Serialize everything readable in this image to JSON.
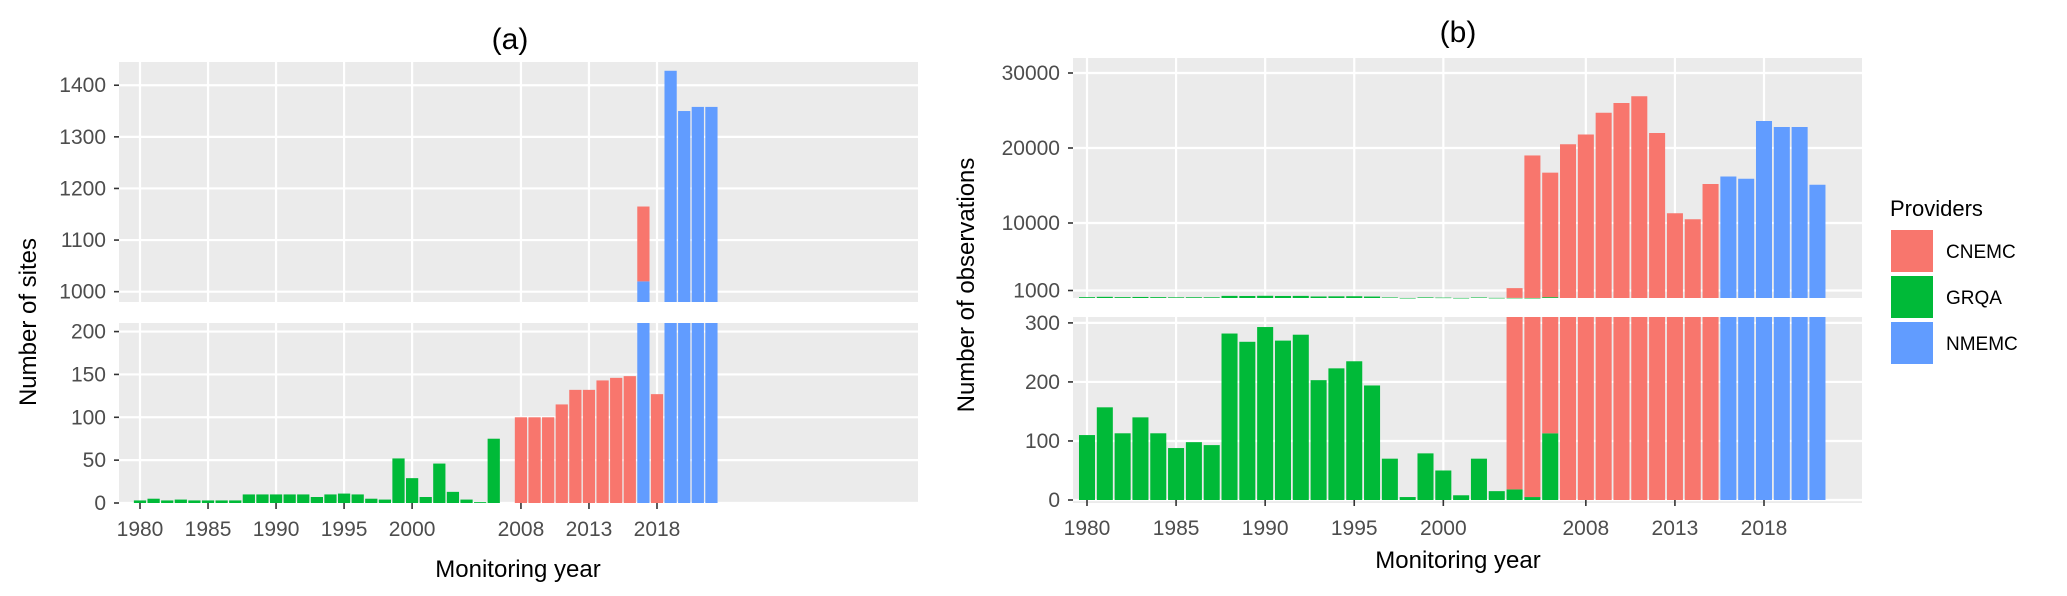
{
  "chart_data": [
    {
      "type": "bar",
      "stacked": true,
      "title": "(a)",
      "xlabel": "Monitoring year",
      "ylabel": "Number of sites",
      "x_ticks": [
        "1980",
        "1985",
        "1990",
        "1995",
        "2000",
        "2008",
        "2013",
        "2018"
      ],
      "y_ticks_upper": [
        "1000",
        "1100",
        "1200",
        "1300",
        "1400"
      ],
      "y_ticks_lower": [
        "0",
        "50",
        "100",
        "150",
        "200"
      ],
      "ylim_upper": [
        980,
        1445
      ],
      "ylim_lower": [
        0,
        210
      ],
      "categories": [
        "1980",
        "1981",
        "1982",
        "1983",
        "1984",
        "1985",
        "1986",
        "1987",
        "1988",
        "1989",
        "1990",
        "1991",
        "1992",
        "1993",
        "1994",
        "1995",
        "1996",
        "1997",
        "1998",
        "1999",
        "2000",
        "2001",
        "2002",
        "2003",
        "2004",
        "2005",
        "2006",
        "2007",
        "2008",
        "2009",
        "2010",
        "2011",
        "2012",
        "2013",
        "2014",
        "2015",
        "2016",
        "2017",
        "2018",
        "2019",
        "2020",
        "2021",
        "2022"
      ],
      "series": [
        {
          "name": "CNEMC",
          "color": "#F8766D",
          "values": [
            0,
            0,
            0,
            0,
            0,
            0,
            0,
            0,
            0,
            0,
            0,
            0,
            0,
            0,
            0,
            0,
            0,
            0,
            0,
            0,
            0,
            0,
            0,
            0,
            0,
            0,
            0,
            0,
            100,
            100,
            100,
            115,
            132,
            132,
            143,
            146,
            148,
            145,
            127,
            0,
            0,
            0,
            0
          ]
        },
        {
          "name": "GRQA",
          "color": "#00BA38",
          "values": [
            3,
            5,
            3,
            4,
            3,
            3,
            3,
            3,
            10,
            10,
            10,
            10,
            10,
            7,
            10,
            11,
            10,
            5,
            4,
            52,
            29,
            7,
            46,
            13,
            4,
            1,
            75,
            0,
            0,
            0,
            0,
            0,
            0,
            0,
            0,
            0,
            0,
            0,
            0,
            0,
            0,
            0,
            0
          ]
        },
        {
          "name": "NMEMC",
          "color": "#619CFF",
          "values": [
            0,
            0,
            0,
            0,
            0,
            0,
            0,
            0,
            0,
            0,
            0,
            0,
            0,
            0,
            0,
            0,
            0,
            0,
            0,
            0,
            0,
            0,
            0,
            0,
            0,
            0,
            0,
            0,
            0,
            0,
            0,
            0,
            0,
            0,
            0,
            0,
            0,
            1020,
            0,
            1428,
            1350,
            1358,
            1358
          ]
        }
      ]
    },
    {
      "type": "bar",
      "stacked": true,
      "title": "(b)",
      "xlabel": "Monitoring year",
      "ylabel": "Number of observations",
      "x_ticks": [
        "1980",
        "1985",
        "1990",
        "1995",
        "2000",
        "2008",
        "2013",
        "2018"
      ],
      "y_ticks_upper": [
        "1000",
        "10000",
        "20000",
        "30000"
      ],
      "y_ticks_lower": [
        "0",
        "100",
        "200",
        "300"
      ],
      "ylim_upper": [
        0,
        32000
      ],
      "ylim_lower": [
        0,
        310
      ],
      "categories": [
        "1980",
        "1981",
        "1982",
        "1983",
        "1984",
        "1985",
        "1986",
        "1987",
        "1988",
        "1989",
        "1990",
        "1991",
        "1992",
        "1993",
        "1994",
        "1995",
        "1996",
        "1997",
        "1998",
        "1999",
        "2000",
        "2001",
        "2002",
        "2003",
        "2004",
        "2005",
        "2006",
        "2007",
        "2008",
        "2009",
        "2010",
        "2011",
        "2012",
        "2013",
        "2014",
        "2015",
        "2016",
        "2017",
        "2018",
        "2019",
        "2020",
        "2021",
        "2022"
      ],
      "series": [
        {
          "name": "CNEMC",
          "color": "#F8766D",
          "values": [
            0,
            0,
            0,
            0,
            0,
            0,
            0,
            0,
            0,
            0,
            0,
            0,
            0,
            0,
            0,
            0,
            0,
            0,
            0,
            0,
            0,
            0,
            0,
            0,
            1300,
            19000,
            16600,
            20500,
            21800,
            24700,
            26000,
            26900,
            22000,
            11300,
            10500,
            15200,
            0,
            0,
            0,
            0,
            0,
            0,
            0
          ]
        },
        {
          "name": "GRQA",
          "color": "#00BA38",
          "values": [
            110,
            157,
            113,
            140,
            113,
            88,
            98,
            93,
            282,
            268,
            293,
            270,
            280,
            203,
            223,
            235,
            194,
            70,
            5,
            79,
            50,
            8,
            70,
            15,
            18,
            5,
            113,
            0,
            0,
            0,
            0,
            0,
            0,
            0,
            0,
            0,
            0,
            0,
            0,
            0,
            0,
            0,
            0
          ]
        },
        {
          "name": "NMEMC",
          "color": "#619CFF",
          "values": [
            0,
            0,
            0,
            0,
            0,
            0,
            0,
            0,
            0,
            0,
            0,
            0,
            0,
            0,
            0,
            0,
            0,
            0,
            0,
            0,
            0,
            0,
            0,
            0,
            0,
            0,
            0,
            0,
            0,
            0,
            0,
            0,
            0,
            0,
            0,
            0,
            16200,
            15900,
            23600,
            22800,
            22800,
            15100,
            0
          ]
        }
      ]
    }
  ],
  "legend": {
    "title": "Providers",
    "entries": [
      {
        "label": "CNEMC",
        "color": "#F8766D"
      },
      {
        "label": "GRQA",
        "color": "#00BA38"
      },
      {
        "label": "NMEMC",
        "color": "#619CFF"
      }
    ]
  }
}
